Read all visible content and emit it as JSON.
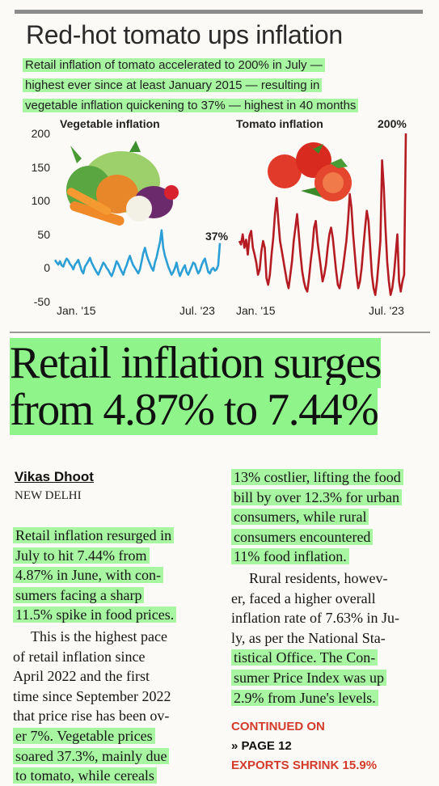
{
  "section_headline": "Red-hot tomato ups inflation",
  "deck": [
    "Retail inflation of tomato accelerated to 200% in July —",
    "highest ever since at least January 2015 — resulting in",
    "vegetable inflation quickening to 37% — highest in 40 months"
  ],
  "chart_data": [
    {
      "type": "line",
      "title": "Vegetable inflation",
      "x_start_label": "Jan. '15",
      "x_end_label": "Jul. '23",
      "yticks": [
        "200",
        "150",
        "100",
        "50",
        "0",
        "-50"
      ],
      "ylim": [
        -50,
        200
      ],
      "end_label": "37%",
      "color": "#2b9fd6",
      "values": [
        12,
        8,
        5,
        10,
        4,
        2,
        9,
        14,
        11,
        6,
        3,
        -2,
        5,
        8,
        12,
        4,
        -4,
        -8,
        2,
        6,
        10,
        15,
        8,
        3,
        -2,
        -6,
        -10,
        -4,
        2,
        8,
        5,
        0,
        -3,
        -8,
        -12,
        -6,
        2,
        10,
        6,
        0,
        -5,
        -10,
        -2,
        4,
        12,
        18,
        10,
        4,
        0,
        -4,
        -8,
        -2,
        10,
        22,
        30,
        20,
        12,
        6,
        0,
        -4,
        8,
        16,
        28,
        38,
        56,
        30,
        18,
        10,
        2,
        -4,
        -10,
        -6,
        0,
        8,
        -4,
        -12,
        -6,
        0,
        4,
        -6,
        -10,
        -4,
        2,
        8,
        6,
        -2,
        -8,
        -4,
        4,
        10,
        14,
        4,
        -6,
        -8,
        -2,
        0,
        -4,
        -2,
        4,
        37
      ]
    },
    {
      "type": "line",
      "title": "Tomato inflation",
      "x_start_label": "Jan. '15",
      "x_end_label": "Jul. '23",
      "ylim": [
        -50,
        200
      ],
      "end_label": "200%",
      "color": "#b51b22",
      "values": [
        40,
        35,
        50,
        30,
        42,
        20,
        48,
        55,
        30,
        20,
        8,
        -10,
        -2,
        25,
        40,
        30,
        -15,
        -25,
        -10,
        20,
        45,
        80,
        104,
        70,
        40,
        25,
        10,
        -5,
        -20,
        -30,
        -10,
        10,
        40,
        60,
        80,
        50,
        20,
        -5,
        -20,
        -30,
        -35,
        -15,
        10,
        30,
        60,
        70,
        40,
        20,
        0,
        -20,
        -10,
        5,
        30,
        50,
        60,
        45,
        20,
        -5,
        -25,
        -30,
        -15,
        0,
        20,
        40,
        70,
        110,
        90,
        50,
        20,
        -10,
        -30,
        -20,
        0,
        30,
        60,
        85,
        70,
        30,
        -10,
        -30,
        -40,
        -20,
        10,
        40,
        160,
        120,
        60,
        10,
        -20,
        -40,
        -30,
        -10,
        20,
        50,
        -20,
        -35,
        -20,
        -10,
        200
      ]
    }
  ],
  "headline": [
    "Retail inflation surges",
    "from 4.87% to 7.44%"
  ],
  "byline": "Vikas Dhoot",
  "dateline": "NEW DELHI",
  "col1_p1": [
    "Retail inflation resurged in",
    "July to hit 7.44% from",
    "4.87% in June, with con-",
    "sumers facing a sharp",
    "11.5% spike in food prices."
  ],
  "col1_p2": [
    "This is the highest pace",
    "of retail inflation since",
    "April 2022 and the first",
    "time since September 2022",
    "that price rise has been ov-",
    "er 7%. Vegetable prices",
    "soared 37.3%, mainly due",
    "to tomato, while cereals"
  ],
  "col2_p1": [
    "13% costlier, lifting the food",
    "bill by over 12.3% for urban",
    "consumers, while rural",
    "consumers encountered",
    "11% food inflation."
  ],
  "col2_p2": [
    "Rural residents, howev-",
    "er, faced a higher overall",
    "inflation rate of 7.63% in Ju-",
    "ly, as per the National Sta-",
    "tistical Office. The Con-",
    "sumer Price Index was up",
    "2.9% from June's levels."
  ],
  "continued": "CONTINUED ON",
  "page_ref": "» PAGE 12",
  "exports_teaser": "EXPORTS SHRINK 15.9%"
}
